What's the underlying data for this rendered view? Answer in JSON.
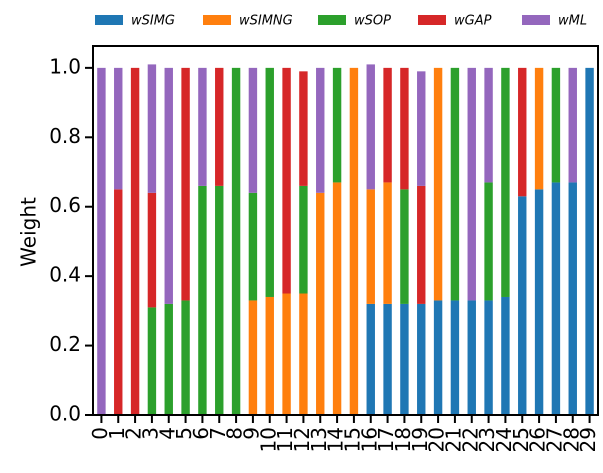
{
  "chart_data": {
    "type": "stacked_bar",
    "ylabel": "Weight",
    "categories": [
      "0",
      "1",
      "2",
      "3",
      "4",
      "5",
      "6",
      "7",
      "8",
      "9",
      "10",
      "11",
      "12",
      "13",
      "14",
      "15",
      "16",
      "17",
      "18",
      "19",
      "20",
      "21",
      "22",
      "23",
      "24",
      "25",
      "26",
      "27",
      "28",
      "29"
    ],
    "series": [
      {
        "name": "wSIMG",
        "color": "#1f77b4",
        "values": [
          0,
          0,
          0,
          0,
          0,
          0,
          0,
          0,
          0,
          0,
          0,
          0,
          0,
          0,
          0,
          0,
          0.32,
          0.32,
          0.32,
          0.32,
          0.33,
          0.33,
          0.33,
          0.33,
          0.34,
          0.63,
          0.65,
          0.67,
          0.67,
          1.0
        ]
      },
      {
        "name": "wSIMNG",
        "color": "#ff7f0e",
        "values": [
          0,
          0,
          0,
          0,
          0,
          0,
          0,
          0,
          0,
          0.33,
          0.34,
          0.35,
          0.35,
          0.64,
          0.67,
          1.0,
          0.33,
          0.35,
          0,
          0,
          0.67,
          0,
          0,
          0,
          0,
          0,
          0.35,
          0,
          0,
          0
        ]
      },
      {
        "name": "wSOP",
        "color": "#2ca02c",
        "values": [
          0,
          0,
          0,
          0.31,
          0.32,
          0.33,
          0.66,
          0.66,
          1.0,
          0.31,
          0.66,
          0,
          0.31,
          0,
          0.33,
          0,
          0,
          0,
          0.33,
          0,
          0,
          0.67,
          0,
          0.34,
          0.66,
          0,
          0,
          0.33,
          0,
          0
        ]
      },
      {
        "name": "wGAP",
        "color": "#d62728",
        "values": [
          0,
          0.65,
          1.0,
          0.33,
          0,
          0.67,
          0,
          0.34,
          0,
          0,
          0,
          0.65,
          0.33,
          0,
          0,
          0,
          0,
          0.33,
          0.35,
          0.34,
          0,
          0,
          0,
          0,
          0,
          0.37,
          0,
          0,
          0,
          0
        ]
      },
      {
        "name": "wML",
        "color": "#9467bd",
        "values": [
          1.0,
          0.35,
          0,
          0.37,
          0.68,
          0,
          0.34,
          0,
          0,
          0.36,
          0,
          0,
          0,
          0.36,
          0,
          0,
          0.36,
          0,
          0,
          0.33,
          0,
          0,
          0.67,
          0.33,
          0,
          0,
          0,
          0,
          0.33,
          0
        ]
      }
    ],
    "ylim": [
      0,
      1.063
    ],
    "yticks": [
      {
        "value": 0,
        "label": "0.0"
      },
      0.2,
      0.4,
      0.6,
      0.8,
      {
        "value": 1,
        "label": "1.0"
      }
    ]
  }
}
